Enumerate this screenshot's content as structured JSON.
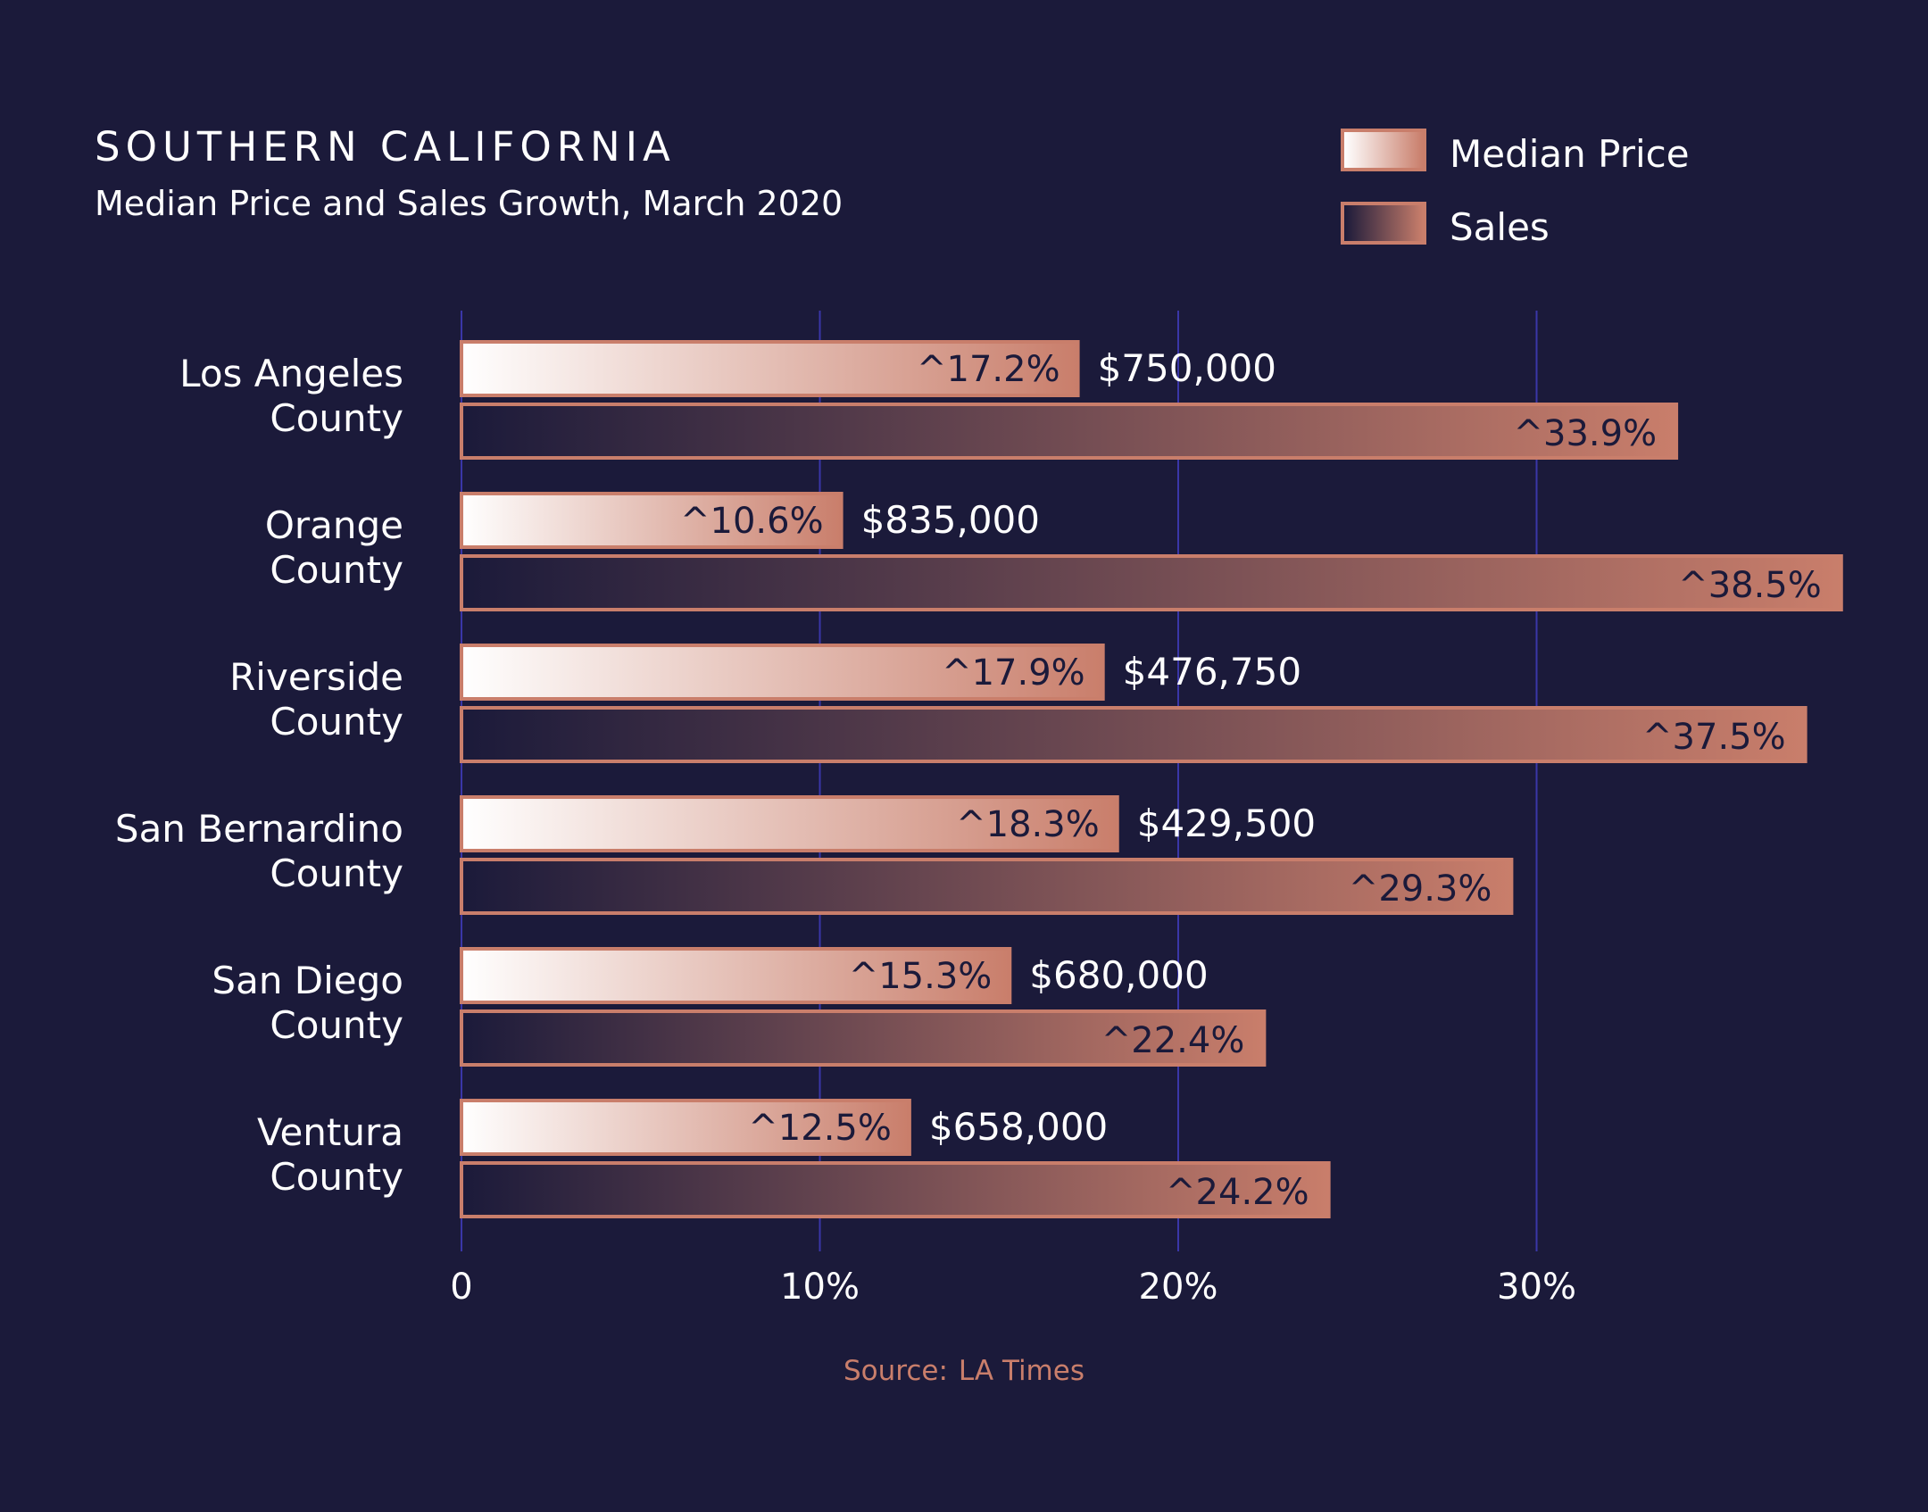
{
  "title": "SOUTHERN CALIFORNIA",
  "subtitle": "Median Price and Sales Growth, March 2020",
  "legend": {
    "price_label": "Median Price",
    "sales_label": "Sales"
  },
  "source": {
    "label": "Source:",
    "value": "LA Times"
  },
  "colors": {
    "background": "#1b1a3a",
    "accent": "#c97e6b",
    "grid": "#3a36a8",
    "text": "#ffffff",
    "dark_text": "#1b1a3a"
  },
  "chart_data": {
    "type": "bar",
    "orientation": "horizontal",
    "categories": [
      [
        "Los Angeles",
        "County"
      ],
      [
        "Orange",
        "County"
      ],
      [
        "Riverside",
        "County"
      ],
      [
        "San Bernardino",
        "County"
      ],
      [
        "San Diego",
        "County"
      ],
      [
        "Ventura",
        "County"
      ]
    ],
    "series": [
      {
        "name": "Median Price",
        "values": [
          17.2,
          10.6,
          17.9,
          18.3,
          15.3,
          12.5
        ],
        "labels": [
          "^17.2%",
          "^10.6%",
          "^17.9%",
          "^18.3%",
          "^15.3%",
          "^12.5%"
        ],
        "prices": [
          "$750,000",
          "$835,000",
          "$476,750",
          "$429,500",
          "$680,000",
          "$658,000"
        ]
      },
      {
        "name": "Sales",
        "values": [
          33.9,
          38.5,
          37.5,
          29.3,
          22.4,
          24.2
        ],
        "labels": [
          "^33.9%",
          "^38.5%",
          "^37.5%",
          "^29.3%",
          "^22.4%",
          "^24.2%"
        ]
      }
    ],
    "xlim": [
      0,
      40
    ],
    "xticks": [
      0,
      10,
      20,
      30
    ],
    "xtick_labels": [
      "0",
      "10%",
      "20%",
      "30%"
    ],
    "grid": true
  }
}
